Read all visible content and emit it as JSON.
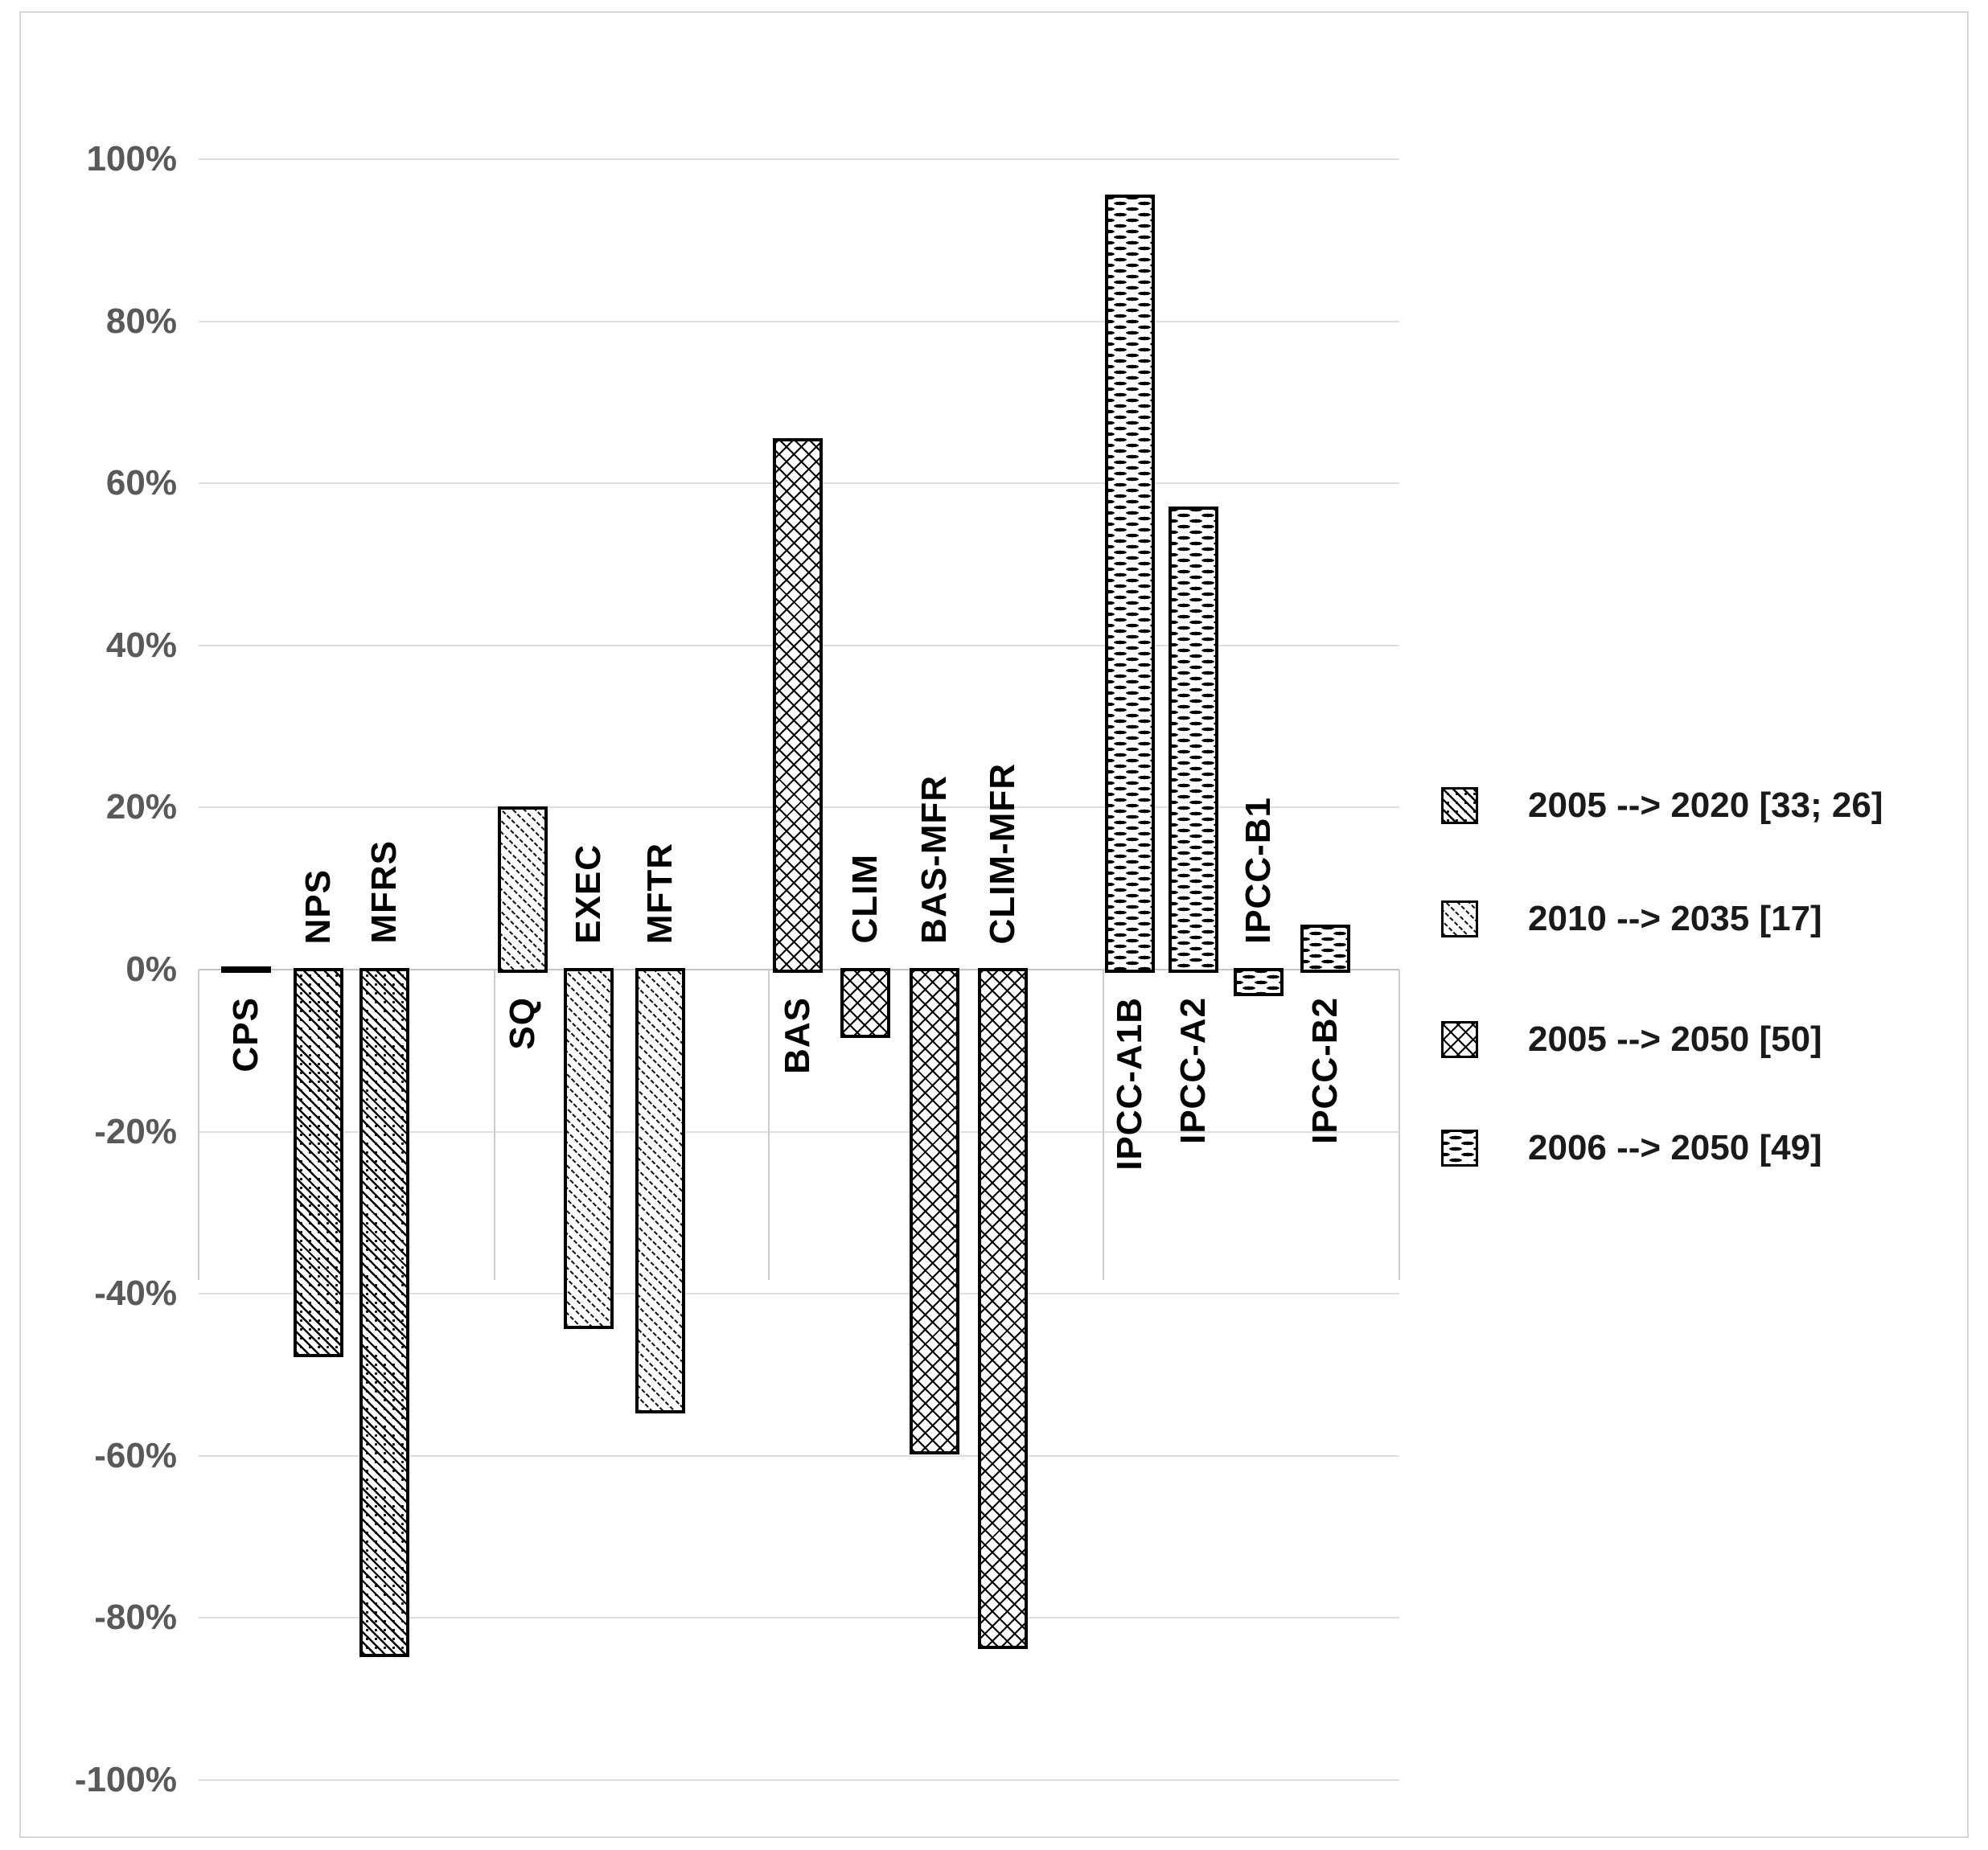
{
  "chart_data": {
    "type": "bar",
    "title": "",
    "value_unit": "percent",
    "grid": "horizontal",
    "legend_position": "right",
    "yaxis": {
      "min": -100,
      "max": 100,
      "step": 20,
      "tick_labels": [
        "100%",
        "80%",
        "60%",
        "40%",
        "20%",
        "0%",
        "-20%",
        "-40%",
        "-60%",
        "-80%",
        "-100%"
      ]
    },
    "groups": [
      {
        "series": "2005 --> 2020 [33; 26]",
        "pattern": "diagonal-dot-hatch",
        "bars": [
          {
            "label": "CPS",
            "value": 0
          },
          {
            "label": "NPS",
            "value": -48
          },
          {
            "label": "MFRS",
            "value": -85
          }
        ]
      },
      {
        "series": "2010 --> 2035 [17]",
        "pattern": "diagonal-dash-hatch",
        "bars": [
          {
            "label": "SQ",
            "value": 20.5
          },
          {
            "label": "EXEC",
            "value": -44.5
          },
          {
            "label": "MFTR",
            "value": -55
          }
        ]
      },
      {
        "series": "2005 --> 2050 [50]",
        "pattern": "diamond-crosshatch",
        "bars": [
          {
            "label": "BAS",
            "value": 66
          },
          {
            "label": "CLIM",
            "value": -8.6
          },
          {
            "label": "BAS-MFR",
            "value": -60
          },
          {
            "label": "CLIM-MFR",
            "value": -84
          }
        ]
      },
      {
        "series": "2006 --> 2050 [49]",
        "pattern": "horizontal-dash",
        "bars": [
          {
            "label": "IPCC-A1B",
            "value": 96
          },
          {
            "label": "IPCC-A2",
            "value": 57.5
          },
          {
            "label": "IPCC-B1",
            "value": -3.5
          },
          {
            "label": "IPCC-B2",
            "value": 6
          }
        ]
      }
    ],
    "legend": [
      {
        "label": "2005 --> 2020 [33; 26]",
        "pattern": "diagonal-dot-hatch"
      },
      {
        "label": "2010 --> 2035 [17]",
        "pattern": "diagonal-dash-hatch"
      },
      {
        "label": "2005 --> 2050 [50]",
        "pattern": "diamond-crosshatch"
      },
      {
        "label": "2006 --> 2050 [49]",
        "pattern": "horizontal-dash"
      }
    ],
    "colors": {
      "bar_outline": "#000000",
      "gridline": "#dedede",
      "zero_line": "#c4c4c4",
      "axis_label_text": "#595959",
      "category_label_text": "#000000",
      "chart_border": "#d8d8d8",
      "background": "#ffffff"
    }
  }
}
